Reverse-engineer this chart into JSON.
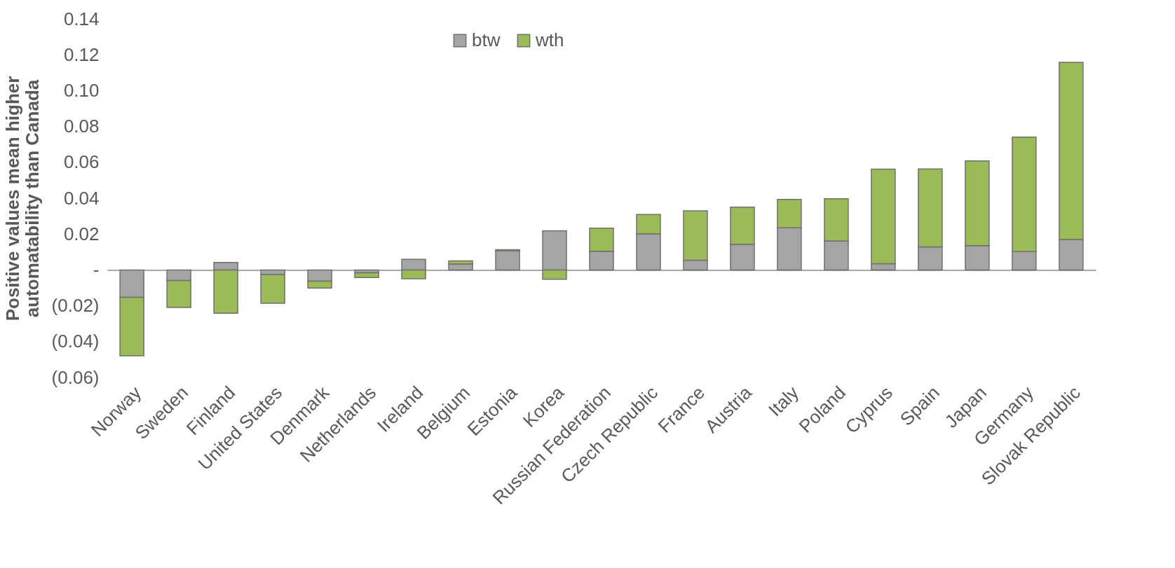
{
  "chart_data": {
    "type": "bar",
    "stacked": true,
    "ylabel": "Positive values mean higher automatability than Canada",
    "categories": [
      "Norway",
      "Sweden",
      "Finland",
      "United States",
      "Denmark",
      "Netherlands",
      "Ireland",
      "Belgium",
      "Estonia",
      "Korea",
      "Russian Federation",
      "Czech Republic",
      "France",
      "Austria",
      "Italy",
      "Poland",
      "Cyprus",
      "Spain",
      "Japan",
      "Germany",
      "Slovak Republic"
    ],
    "series": [
      {
        "name": "btw",
        "color": "#a5a5a5",
        "values": [
          -0.0153,
          -0.0059,
          0.0042,
          -0.0026,
          -0.0063,
          -0.0016,
          0.0059,
          0.0033,
          0.0106,
          0.0218,
          0.0104,
          0.0201,
          0.0054,
          0.0143,
          0.0235,
          0.0162,
          0.0035,
          0.0129,
          0.0135,
          0.0102,
          0.017
        ]
      },
      {
        "name": "wth",
        "color": "#9bbb59",
        "values": [
          -0.0326,
          -0.015,
          -0.0242,
          -0.016,
          -0.0038,
          -0.0026,
          -0.0049,
          0.0017,
          0.0007,
          -0.0052,
          0.0129,
          0.0108,
          0.0276,
          0.0207,
          0.0158,
          0.0235,
          0.0527,
          0.0434,
          0.0473,
          0.0639,
          0.0988
        ]
      }
    ],
    "ylim": [
      -0.06,
      0.14
    ],
    "yticks": [
      {
        "value": -0.06,
        "label": "(0.06)"
      },
      {
        "value": -0.04,
        "label": "(0.04)"
      },
      {
        "value": -0.02,
        "label": "(0.02)"
      },
      {
        "value": 0,
        "label": "-"
      },
      {
        "value": 0.02,
        "label": "0.02"
      },
      {
        "value": 0.04,
        "label": "0.04"
      },
      {
        "value": 0.06,
        "label": "0.06"
      },
      {
        "value": 0.08,
        "label": "0.08"
      },
      {
        "value": 0.1,
        "label": "0.10"
      },
      {
        "value": 0.12,
        "label": "0.12"
      },
      {
        "value": 0.14,
        "label": "0.14"
      }
    ],
    "legend": "top"
  }
}
